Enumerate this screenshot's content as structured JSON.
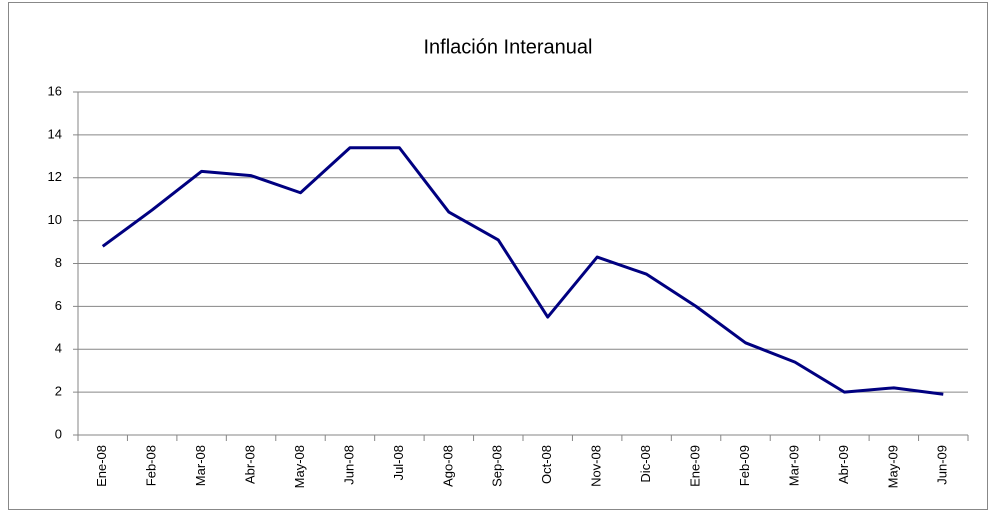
{
  "chart_data": {
    "type": "line",
    "title": "Inflación Interanual",
    "categories": [
      "Ene-08",
      "Feb-08",
      "Mar-08",
      "Abr-08",
      "May-08",
      "Jun-08",
      "Jul-08",
      "Ago-08",
      "Sep-08",
      "Oct-08",
      "Nov-08",
      "Dic-08",
      "Ene-09",
      "Feb-09",
      "Mar-09",
      "Abr-09",
      "May-09",
      "Jun-09"
    ],
    "series": [
      {
        "name": "Inflación Interanual",
        "color": "#000080",
        "values": [
          8.8,
          10.5,
          12.3,
          12.1,
          11.3,
          13.4,
          13.4,
          10.4,
          9.1,
          5.5,
          8.3,
          7.5,
          6.0,
          4.3,
          3.4,
          2.0,
          2.2,
          1.9
        ]
      }
    ],
    "ylim": [
      0,
      16
    ],
    "yticks": [
      0,
      2,
      4,
      6,
      8,
      10,
      12,
      14,
      16
    ],
    "grid": true
  }
}
